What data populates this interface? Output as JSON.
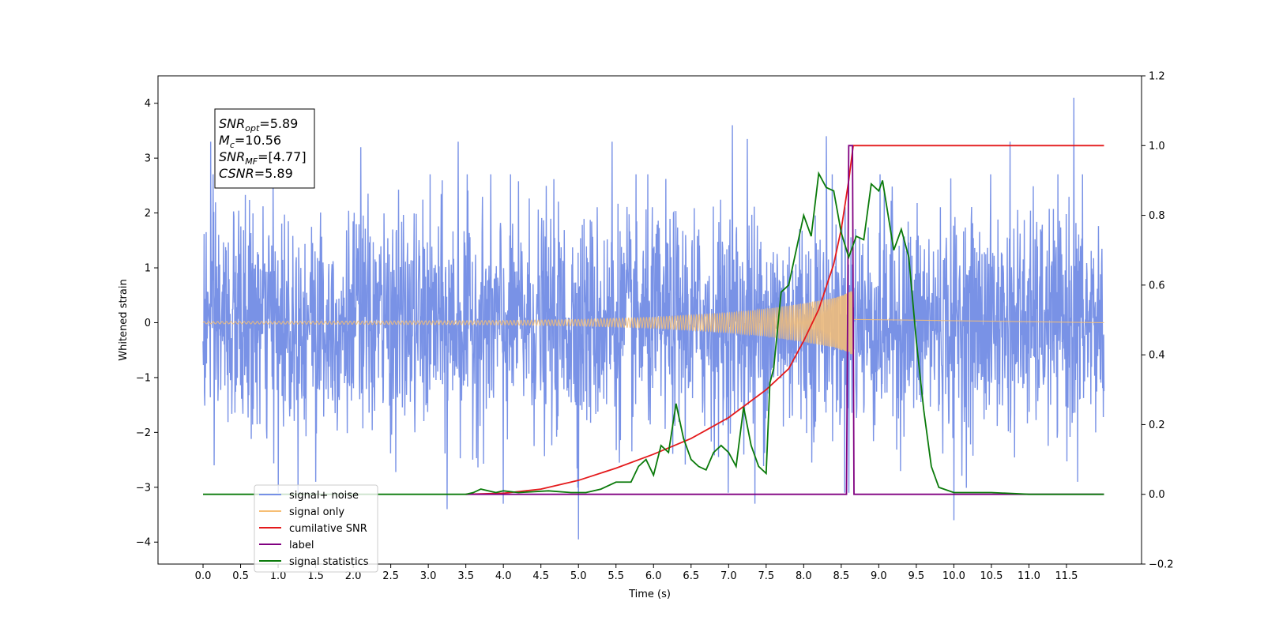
{
  "chart_data": {
    "type": "line",
    "xlabel": "Time (s)",
    "ylabel_left": "Whitened strain",
    "ylabel_right": "",
    "xlim": [
      -0.6,
      12.5
    ],
    "ylim_left": [
      -4.4,
      4.5
    ],
    "ylim_right": [
      -0.2,
      1.2
    ],
    "x_ticks": [
      0.0,
      0.5,
      1.0,
      1.5,
      2.0,
      2.5,
      3.0,
      3.5,
      4.0,
      4.5,
      5.0,
      5.5,
      6.0,
      6.5,
      7.0,
      7.5,
      8.0,
      8.5,
      9.0,
      9.5,
      10.0,
      10.5,
      11.0,
      11.5
    ],
    "x_tick_labels": [
      "0.0",
      "0.5",
      "1.0",
      "1.5",
      "2.0",
      "2.5",
      "3.0",
      "3.5",
      "4.0",
      "4.5",
      "5.0",
      "5.5",
      "6.0",
      "6.5",
      "7.0",
      "7.5",
      "8.0",
      "8.5",
      "9.0",
      "9.5",
      "10.0",
      "10.5",
      "11.0",
      "11.5"
    ],
    "y_ticks_left": [
      -4,
      -3,
      -2,
      -1,
      0,
      1,
      2,
      3,
      4
    ],
    "y_tick_labels_left": [
      "−4",
      "−3",
      "−2",
      "−1",
      "0",
      "1",
      "2",
      "3",
      "4"
    ],
    "y_ticks_right": [
      -0.2,
      0.0,
      0.2,
      0.4,
      0.6,
      0.8,
      1.0,
      1.2
    ],
    "y_tick_labels_right": [
      "−0.2",
      "0.0",
      "0.2",
      "0.4",
      "0.6",
      "0.8",
      "1.0",
      "1.2"
    ],
    "grid": false,
    "legend_position": "lower-left",
    "annotation": {
      "lines": [
        {
          "sym": "SNR",
          "sub": "opt",
          "value": "=5.89"
        },
        {
          "sym": "M",
          "sub": "c",
          "value": "=10.56"
        },
        {
          "sym": "SNR",
          "sub": "MF",
          "value": "=[4.77]"
        },
        {
          "sym": "CSNR",
          "sub": "",
          "value": "=5.89"
        }
      ]
    },
    "series": [
      {
        "name": "signal+ noise",
        "axis": "left",
        "color": "#7690e6",
        "kind": "noise",
        "x_range": [
          0.0,
          12.0
        ],
        "amplitude_sigma": 1.0,
        "envelope_max": 3.3,
        "envelope_min": -3.1,
        "extreme_points": [
          {
            "x": 0.1,
            "y": 3.3
          },
          {
            "x": 0.15,
            "y": -2.6
          },
          {
            "x": 1.0,
            "y": -3.1
          },
          {
            "x": 1.5,
            "y": -2.9
          },
          {
            "x": 2.1,
            "y": 3.2
          },
          {
            "x": 3.25,
            "y": -3.4
          },
          {
            "x": 3.4,
            "y": 3.3
          },
          {
            "x": 4.0,
            "y": -3.3
          },
          {
            "x": 5.0,
            "y": -3.95
          },
          {
            "x": 5.45,
            "y": 3.3
          },
          {
            "x": 7.05,
            "y": 3.6
          },
          {
            "x": 7.25,
            "y": 3.35
          },
          {
            "x": 7.35,
            "y": -3.3
          },
          {
            "x": 8.3,
            "y": 3.4
          },
          {
            "x": 8.6,
            "y": -3.1
          },
          {
            "x": 10.0,
            "y": -3.6
          },
          {
            "x": 10.75,
            "y": 3.3
          },
          {
            "x": 11.6,
            "y": 4.1
          },
          {
            "x": 11.65,
            "y": -2.9
          }
        ]
      },
      {
        "name": "signal only",
        "axis": "left",
        "color": "#f6be74",
        "kind": "chirp",
        "x_start": 0.0,
        "x_end": 8.66,
        "x_after_end": 12.0,
        "amplitude_points": [
          {
            "x": 0.0,
            "y": 0.02
          },
          {
            "x": 4.0,
            "y": 0.04
          },
          {
            "x": 5.0,
            "y": 0.06
          },
          {
            "x": 6.0,
            "y": 0.1
          },
          {
            "x": 7.0,
            "y": 0.18
          },
          {
            "x": 7.5,
            "y": 0.25
          },
          {
            "x": 8.0,
            "y": 0.35
          },
          {
            "x": 8.4,
            "y": 0.45
          },
          {
            "x": 8.6,
            "y": 0.55
          },
          {
            "x": 8.66,
            "y": 0.6
          }
        ]
      },
      {
        "name": "cumilative SNR",
        "axis": "right",
        "color": "#e41a1c",
        "kind": "line",
        "points": [
          {
            "x": 3.5,
            "y": 0.0
          },
          {
            "x": 4.0,
            "y": 0.003
          },
          {
            "x": 4.5,
            "y": 0.015
          },
          {
            "x": 5.0,
            "y": 0.04
          },
          {
            "x": 5.5,
            "y": 0.075
          },
          {
            "x": 6.0,
            "y": 0.115
          },
          {
            "x": 6.5,
            "y": 0.16
          },
          {
            "x": 7.0,
            "y": 0.22
          },
          {
            "x": 7.5,
            "y": 0.3
          },
          {
            "x": 7.8,
            "y": 0.36
          },
          {
            "x": 8.0,
            "y": 0.44
          },
          {
            "x": 8.2,
            "y": 0.53
          },
          {
            "x": 8.4,
            "y": 0.66
          },
          {
            "x": 8.5,
            "y": 0.76
          },
          {
            "x": 8.6,
            "y": 0.9
          },
          {
            "x": 8.66,
            "y": 1.0
          },
          {
            "x": 12.0,
            "y": 1.0
          }
        ]
      },
      {
        "name": "label",
        "axis": "right",
        "color": "#800080",
        "kind": "line",
        "points": [
          {
            "x": 3.5,
            "y": 0.0
          },
          {
            "x": 8.57,
            "y": 0.0
          },
          {
            "x": 8.6,
            "y": 1.0
          },
          {
            "x": 8.65,
            "y": 1.0
          },
          {
            "x": 8.67,
            "y": 0.0
          },
          {
            "x": 12.0,
            "y": 0.0
          }
        ]
      },
      {
        "name": "signal statistics",
        "axis": "right",
        "color": "#0a7a0a",
        "kind": "line",
        "points": [
          {
            "x": 0.0,
            "y": 0.0
          },
          {
            "x": 3.5,
            "y": 0.0
          },
          {
            "x": 3.6,
            "y": 0.005
          },
          {
            "x": 3.7,
            "y": 0.015
          },
          {
            "x": 3.9,
            "y": 0.005
          },
          {
            "x": 4.0,
            "y": 0.01
          },
          {
            "x": 4.2,
            "y": 0.005
          },
          {
            "x": 4.6,
            "y": 0.01
          },
          {
            "x": 4.9,
            "y": 0.005
          },
          {
            "x": 5.1,
            "y": 0.005
          },
          {
            "x": 5.3,
            "y": 0.015
          },
          {
            "x": 5.5,
            "y": 0.035
          },
          {
            "x": 5.7,
            "y": 0.035
          },
          {
            "x": 5.8,
            "y": 0.08
          },
          {
            "x": 5.9,
            "y": 0.1
          },
          {
            "x": 6.0,
            "y": 0.055
          },
          {
            "x": 6.1,
            "y": 0.14
          },
          {
            "x": 6.2,
            "y": 0.12
          },
          {
            "x": 6.3,
            "y": 0.26
          },
          {
            "x": 6.4,
            "y": 0.16
          },
          {
            "x": 6.5,
            "y": 0.1
          },
          {
            "x": 6.6,
            "y": 0.08
          },
          {
            "x": 6.7,
            "y": 0.07
          },
          {
            "x": 6.8,
            "y": 0.12
          },
          {
            "x": 6.9,
            "y": 0.14
          },
          {
            "x": 7.0,
            "y": 0.12
          },
          {
            "x": 7.1,
            "y": 0.08
          },
          {
            "x": 7.2,
            "y": 0.25
          },
          {
            "x": 7.3,
            "y": 0.14
          },
          {
            "x": 7.4,
            "y": 0.08
          },
          {
            "x": 7.5,
            "y": 0.06
          },
          {
            "x": 7.55,
            "y": 0.32
          },
          {
            "x": 7.6,
            "y": 0.36
          },
          {
            "x": 7.7,
            "y": 0.58
          },
          {
            "x": 7.8,
            "y": 0.6
          },
          {
            "x": 8.0,
            "y": 0.8
          },
          {
            "x": 8.1,
            "y": 0.74
          },
          {
            "x": 8.2,
            "y": 0.92
          },
          {
            "x": 8.3,
            "y": 0.88
          },
          {
            "x": 8.4,
            "y": 0.87
          },
          {
            "x": 8.5,
            "y": 0.75
          },
          {
            "x": 8.6,
            "y": 0.68
          },
          {
            "x": 8.7,
            "y": 0.74
          },
          {
            "x": 8.8,
            "y": 0.73
          },
          {
            "x": 8.9,
            "y": 0.89
          },
          {
            "x": 9.0,
            "y": 0.87
          },
          {
            "x": 9.05,
            "y": 0.9
          },
          {
            "x": 9.2,
            "y": 0.7
          },
          {
            "x": 9.3,
            "y": 0.76
          },
          {
            "x": 9.4,
            "y": 0.68
          },
          {
            "x": 9.5,
            "y": 0.44
          },
          {
            "x": 9.6,
            "y": 0.24
          },
          {
            "x": 9.7,
            "y": 0.08
          },
          {
            "x": 9.8,
            "y": 0.02
          },
          {
            "x": 10.0,
            "y": 0.005
          },
          {
            "x": 10.5,
            "y": 0.005
          },
          {
            "x": 11.0,
            "y": 0.0
          },
          {
            "x": 12.0,
            "y": 0.0
          }
        ]
      }
    ],
    "legend": [
      {
        "label": "signal+ noise",
        "color": "#7690e6"
      },
      {
        "label": "signal only",
        "color": "#f6be74"
      },
      {
        "label": "cumilative SNR",
        "color": "#e41a1c"
      },
      {
        "label": "label",
        "color": "#800080"
      },
      {
        "label": "signal statistics",
        "color": "#0a7a0a"
      }
    ]
  }
}
